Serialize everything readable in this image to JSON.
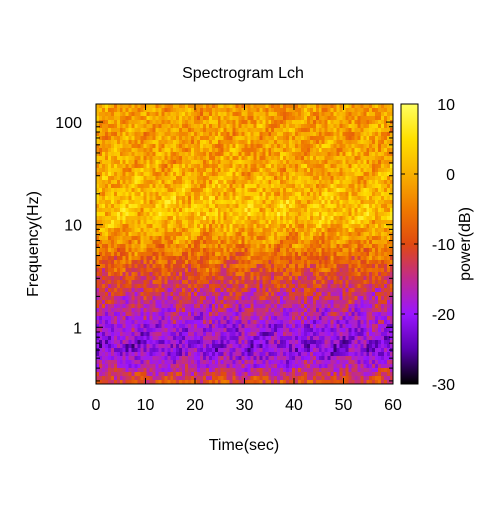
{
  "chart_data": {
    "type": "heatmap",
    "title": "Spectrogram Lch",
    "xlabel": "Time(sec)",
    "ylabel": "Frequency(Hz)",
    "xlim": [
      0,
      60
    ],
    "ylim": [
      0.28,
      150
    ],
    "yscale": "log",
    "x_ticks": [
      {
        "value": 0,
        "label": "0"
      },
      {
        "value": 10,
        "label": "10"
      },
      {
        "value": 20,
        "label": "20"
      },
      {
        "value": 30,
        "label": "30"
      },
      {
        "value": 40,
        "label": "40"
      },
      {
        "value": 50,
        "label": "50"
      },
      {
        "value": 60,
        "label": "60"
      }
    ],
    "y_ticks": [
      {
        "value": 1,
        "label": "1"
      },
      {
        "value": 10,
        "label": "10"
      },
      {
        "value": 100,
        "label": "100"
      }
    ],
    "colorbar": {
      "label": "power(dB)",
      "range": [
        -30,
        10
      ],
      "ticks": [
        {
          "value": 10,
          "label": "10"
        },
        {
          "value": 0,
          "label": "0"
        },
        {
          "value": -10,
          "label": "-10"
        },
        {
          "value": -20,
          "label": "-20"
        },
        {
          "value": -30,
          "label": "-30"
        }
      ],
      "colormap": [
        "#000000",
        "#5a00b0",
        "#9a16ff",
        "#c02a90",
        "#e04a10",
        "#f07a00",
        "#f8b000",
        "#ffe000",
        "#ffff60"
      ]
    },
    "power_profile": [
      {
        "freq": 150,
        "db": -2
      },
      {
        "freq": 40,
        "db": -1
      },
      {
        "freq": 12,
        "db": 2
      },
      {
        "freq": 8,
        "db": -2
      },
      {
        "freq": 4,
        "db": -8
      },
      {
        "freq": 2,
        "db": -14
      },
      {
        "freq": 1,
        "db": -19
      },
      {
        "freq": 0.6,
        "db": -21
      },
      {
        "freq": 0.4,
        "db": -16
      },
      {
        "freq": 0.28,
        "db": -9
      }
    ]
  }
}
